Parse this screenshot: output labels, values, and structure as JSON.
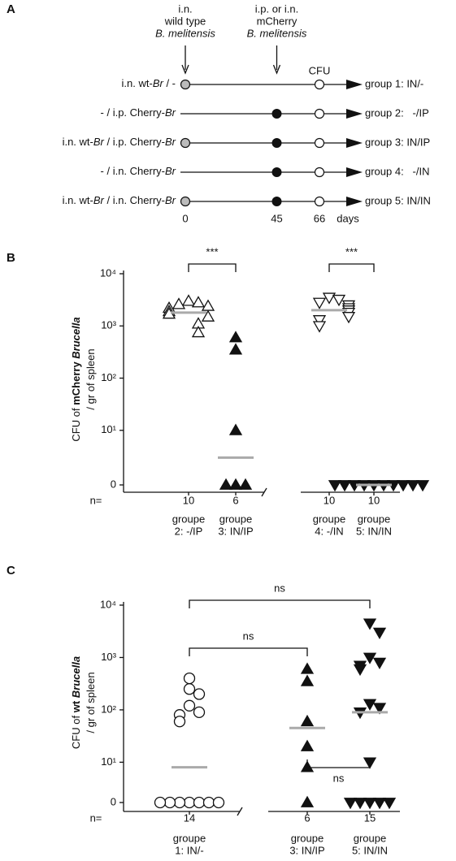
{
  "diagram": {
    "letter": "A",
    "headers": [
      {
        "lines": [
          "i.n.",
          "wild type",
          "B. melitensis"
        ],
        "day": 0
      },
      {
        "lines": [
          "i.p. or i.n.",
          "mCherry",
          "B. melitensis"
        ],
        "day": 45
      },
      {
        "lines": [
          "CFU"
        ],
        "day": 66
      }
    ],
    "days": [
      0,
      45,
      66
    ],
    "days_unit": "days",
    "rows": [
      {
        "left": [
          "i.n. wt-",
          "Br",
          " / -"
        ],
        "right": "group 1: IN/-",
        "wt": true,
        "cherry": false
      },
      {
        "left": [
          "- / i.p. Cherry-",
          "Br"
        ],
        "right": "group 2:   -/IP",
        "wt": false,
        "cherry": true
      },
      {
        "left": [
          "i.n. wt-",
          "Br",
          " / i.p. Cherry-",
          "Br"
        ],
        "right": "group 3: IN/IP",
        "wt": true,
        "cherry": true
      },
      {
        "left": [
          "- / i.n. Cherry-",
          "Br"
        ],
        "right": "group 4:   -/IN",
        "wt": false,
        "cherry": true
      },
      {
        "left": [
          "i.n. wt-",
          "Br",
          " / i.n. Cherry-",
          "Br"
        ],
        "right": "group 5: IN/IN",
        "wt": true,
        "cherry": true
      }
    ]
  },
  "chart_data": [
    {
      "type": "dotplot",
      "letter": "B",
      "yscale": "log",
      "ylabel": [
        [
          {
            "text": "CFU of "
          },
          {
            "text": "mCherry ",
            "bold": true
          },
          {
            "text": "Brucella",
            "bold": true,
            "italic": true
          }
        ],
        [
          {
            "text": "/ gr of spleen"
          }
        ]
      ],
      "ylim": [
        0.9,
        10000
      ],
      "yticks": [
        0,
        {
          "value": 10,
          "label": "10¹"
        },
        {
          "value": 100,
          "label": "10²"
        },
        {
          "value": 1000,
          "label": "10³"
        },
        {
          "value": 10000,
          "label": "10⁴"
        }
      ],
      "n_label": "n=",
      "median_color": "#aaaaaa",
      "groups": [
        {
          "label": [
            "groupe",
            "2: -/IP"
          ],
          "n": 10,
          "marker": "triangle-up",
          "filled": false,
          "values": [
            3000,
            2800,
            2600,
            2400,
            2200,
            1900,
            1700,
            1500,
            1100,
            750
          ],
          "median": 1800
        },
        {
          "label": [
            "groupe",
            "3: IN/IP"
          ],
          "n": 6,
          "marker": "triangle-up",
          "filled": true,
          "values": [
            600,
            350,
            10,
            0,
            0,
            0
          ],
          "median": 3
        },
        {
          "label": [
            "groupe",
            "4: -/IN"
          ],
          "n": 10,
          "marker": "triangle-down",
          "filled": false,
          "values": [
            3500,
            3200,
            2800,
            2500,
            2200,
            2000,
            1800,
            1500,
            1300,
            1000
          ],
          "median": 2000
        },
        {
          "label": [
            "groupe",
            "5: IN/IN"
          ],
          "n": 10,
          "marker": "triangle-down",
          "filled": true,
          "values": [
            0,
            0,
            0,
            0,
            0,
            0,
            0,
            0,
            0,
            0
          ],
          "median": 0
        }
      ],
      "brackets": [
        {
          "groups": [
            0,
            1
          ],
          "label": "***"
        },
        {
          "groups": [
            2,
            3
          ],
          "label": "***"
        }
      ]
    },
    {
      "type": "dotplot",
      "letter": "C",
      "yscale": "log",
      "ylabel": [
        [
          {
            "text": "CFU of "
          },
          {
            "text": "wt ",
            "bold": true
          },
          {
            "text": "Brucella",
            "bold": true,
            "italic": true
          }
        ],
        [
          {
            "text": "/ gr of spleen"
          }
        ]
      ],
      "ylim": [
        1.7,
        10000
      ],
      "yticks": [
        0,
        {
          "value": 10,
          "label": "10¹"
        },
        {
          "value": 100,
          "label": "10²"
        },
        {
          "value": 1000,
          "label": "10³"
        },
        {
          "value": 10000,
          "label": "10⁴"
        }
      ],
      "n_label": "n=",
      "median_color": "#aaaaaa",
      "groups": [
        {
          "label": [
            "groupe",
            "1: IN/-"
          ],
          "n": 14,
          "marker": "circle",
          "filled": false,
          "values": [
            400,
            250,
            200,
            120,
            90,
            80,
            60,
            0,
            0,
            0,
            0,
            0,
            0,
            0
          ],
          "median": 8
        },
        {
          "label": [
            "groupe",
            "3: IN/IP"
          ],
          "n": 6,
          "marker": "triangle-up",
          "filled": true,
          "values": [
            600,
            350,
            60,
            20,
            8,
            0
          ],
          "median": 45
        },
        {
          "label": [
            "groupe",
            "5: IN/IN"
          ],
          "n": 15,
          "marker": "triangle-down",
          "filled": true,
          "values": [
            4500,
            3000,
            1000,
            800,
            700,
            600,
            130,
            110,
            90,
            10,
            0,
            0,
            0,
            0,
            0
          ],
          "median": 90
        }
      ],
      "brackets": [
        {
          "groups": [
            0,
            2
          ],
          "label": "ns"
        },
        {
          "groups": [
            0,
            1
          ],
          "label": "ns"
        },
        {
          "groups": [
            1,
            2
          ],
          "label": "ns",
          "below": true
        }
      ]
    }
  ]
}
